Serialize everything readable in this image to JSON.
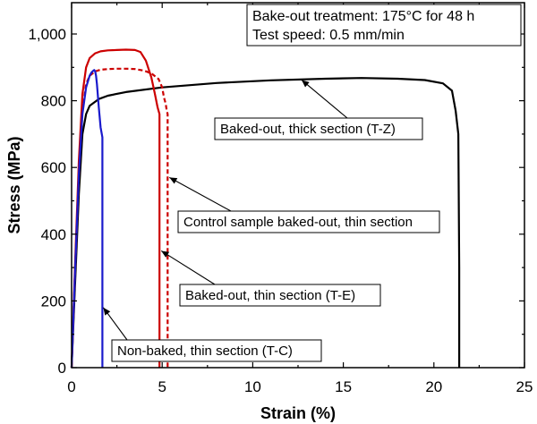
{
  "chart_data": {
    "type": "line",
    "title": "",
    "xlabel": "Strain (%)",
    "ylabel": "Stress (MPa)",
    "xlim": [
      0,
      25
    ],
    "ylim": [
      0,
      1100
    ],
    "xticks": [
      0,
      5,
      10,
      15,
      20,
      25
    ],
    "yticks": [
      0,
      200,
      400,
      600,
      800,
      1000
    ],
    "xtick_labels": [
      "0",
      "5",
      "10",
      "15",
      "20",
      "25"
    ],
    "ytick_labels": [
      "0",
      "200",
      "400",
      "600",
      "800",
      "1,000"
    ],
    "grid": false,
    "legend": "none",
    "info_box": {
      "lines": [
        "Bake-out treatment: 175°C for 48 h",
        "Test speed: 0.5 mm/min"
      ],
      "placement": "top-right"
    },
    "series": [
      {
        "name": "Baked-out, thick section (T-Z)",
        "color": "#000000",
        "style": "solid",
        "x": [
          0,
          0.2,
          0.4,
          0.6,
          0.8,
          1.0,
          1.5,
          2,
          3,
          5,
          8,
          11,
          14,
          16,
          18,
          19.5,
          20.5,
          21.0,
          21.2,
          21.35,
          21.4,
          21.4
        ],
        "y": [
          0,
          260,
          520,
          700,
          760,
          785,
          805,
          815,
          826,
          840,
          853,
          861,
          866,
          868,
          866,
          862,
          852,
          830,
          770,
          700,
          300,
          0
        ]
      },
      {
        "name": "Baked-out, thin section (T-E)",
        "color": "#cc0000",
        "style": "solid",
        "x": [
          0,
          0.2,
          0.4,
          0.6,
          0.8,
          1.0,
          1.3,
          1.6,
          2.0,
          2.5,
          3.0,
          3.5,
          3.8,
          4.1,
          4.4,
          4.6,
          4.75,
          4.85,
          4.85
        ],
        "y": [
          0,
          320,
          620,
          820,
          900,
          928,
          942,
          948,
          951,
          952,
          953,
          952,
          946,
          920,
          870,
          820,
          780,
          760,
          0
        ]
      },
      {
        "name": "Control sample baked-out, thin section",
        "color": "#cc0000",
        "style": "dashed",
        "x": [
          0,
          0.2,
          0.4,
          0.6,
          0.8,
          1.0,
          1.3,
          1.6,
          2.0,
          2.5,
          3.0,
          3.5,
          4.0,
          4.4,
          4.8,
          5.0,
          5.1,
          5.2,
          5.25,
          5.3,
          5.3
        ],
        "y": [
          0,
          300,
          580,
          770,
          850,
          875,
          888,
          893,
          895,
          896,
          896,
          895,
          890,
          882,
          865,
          840,
          810,
          790,
          770,
          760,
          0
        ]
      },
      {
        "name": "Non-baked, thin section (T-C)",
        "color": "#1a1acc",
        "style": "solid",
        "x": [
          0,
          0.2,
          0.4,
          0.6,
          0.8,
          1.0,
          1.1,
          1.2,
          1.25,
          1.3,
          1.35,
          1.4,
          1.5,
          1.6,
          1.7,
          1.7
        ],
        "y": [
          0,
          300,
          580,
          760,
          840,
          875,
          885,
          890,
          892,
          888,
          875,
          850,
          780,
          720,
          690,
          0
        ]
      }
    ],
    "annotations": [
      {
        "text": "Baked-out, thick section (T-Z)",
        "series": 0,
        "target": [
          12.7,
          862
        ]
      },
      {
        "text": "Control sample baked-out, thin section",
        "series": 2,
        "target": [
          5.4,
          570
        ]
      },
      {
        "text": "Baked-out, thin section (T-E)",
        "series": 1,
        "target": [
          4.95,
          350
        ]
      },
      {
        "text": "Non-baked, thin section (T-C)",
        "series": 3,
        "target": [
          1.75,
          180
        ]
      }
    ]
  }
}
